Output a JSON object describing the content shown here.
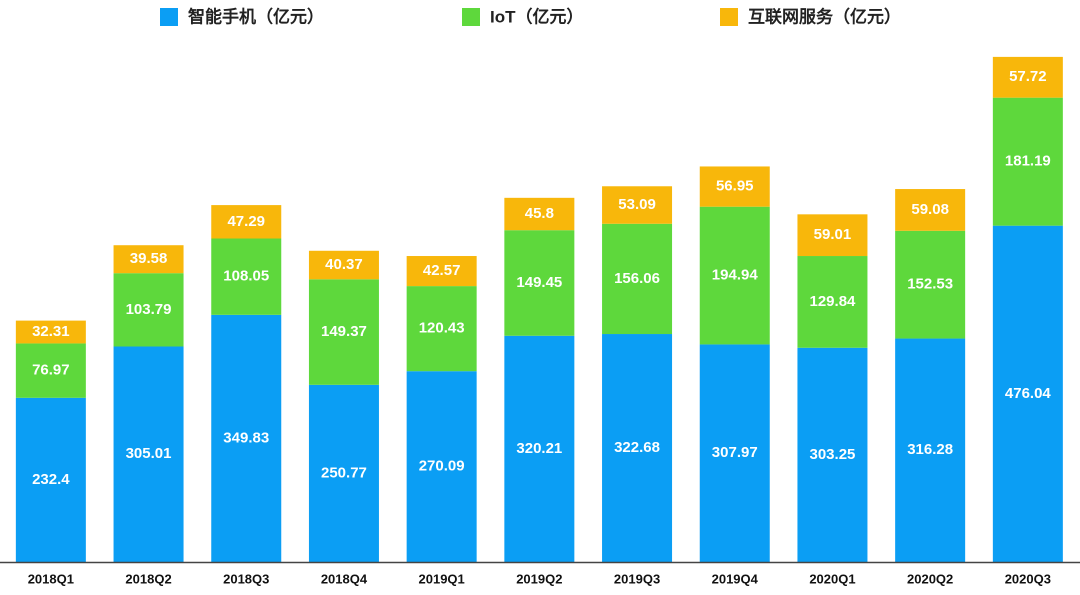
{
  "chart_data": {
    "type": "stacked_bar",
    "categories": [
      "2018Q1",
      "2018Q2",
      "2018Q3",
      "2018Q4",
      "2019Q1",
      "2019Q2",
      "2019Q3",
      "2019Q4",
      "2020Q1",
      "2020Q2",
      "2020Q3"
    ],
    "series": [
      {
        "name": "智能手机（亿元）",
        "color": "#0b9ef4",
        "values": [
          232.4,
          305.01,
          349.83,
          250.77,
          270.09,
          320.21,
          322.68,
          307.97,
          303.25,
          316.28,
          476.04
        ]
      },
      {
        "name": "IoT（亿元）",
        "color": "#5ed83c",
        "values": [
          76.97,
          103.79,
          108.05,
          149.37,
          120.43,
          149.45,
          156.06,
          194.94,
          129.84,
          152.53,
          181.19
        ]
      },
      {
        "name": "互联网服务（亿元）",
        "color": "#f8b70b",
        "values": [
          32.31,
          39.58,
          47.29,
          40.37,
          42.57,
          45.8,
          53.09,
          56.95,
          59.01,
          59.08,
          57.72
        ]
      }
    ],
    "legend": "top"
  }
}
